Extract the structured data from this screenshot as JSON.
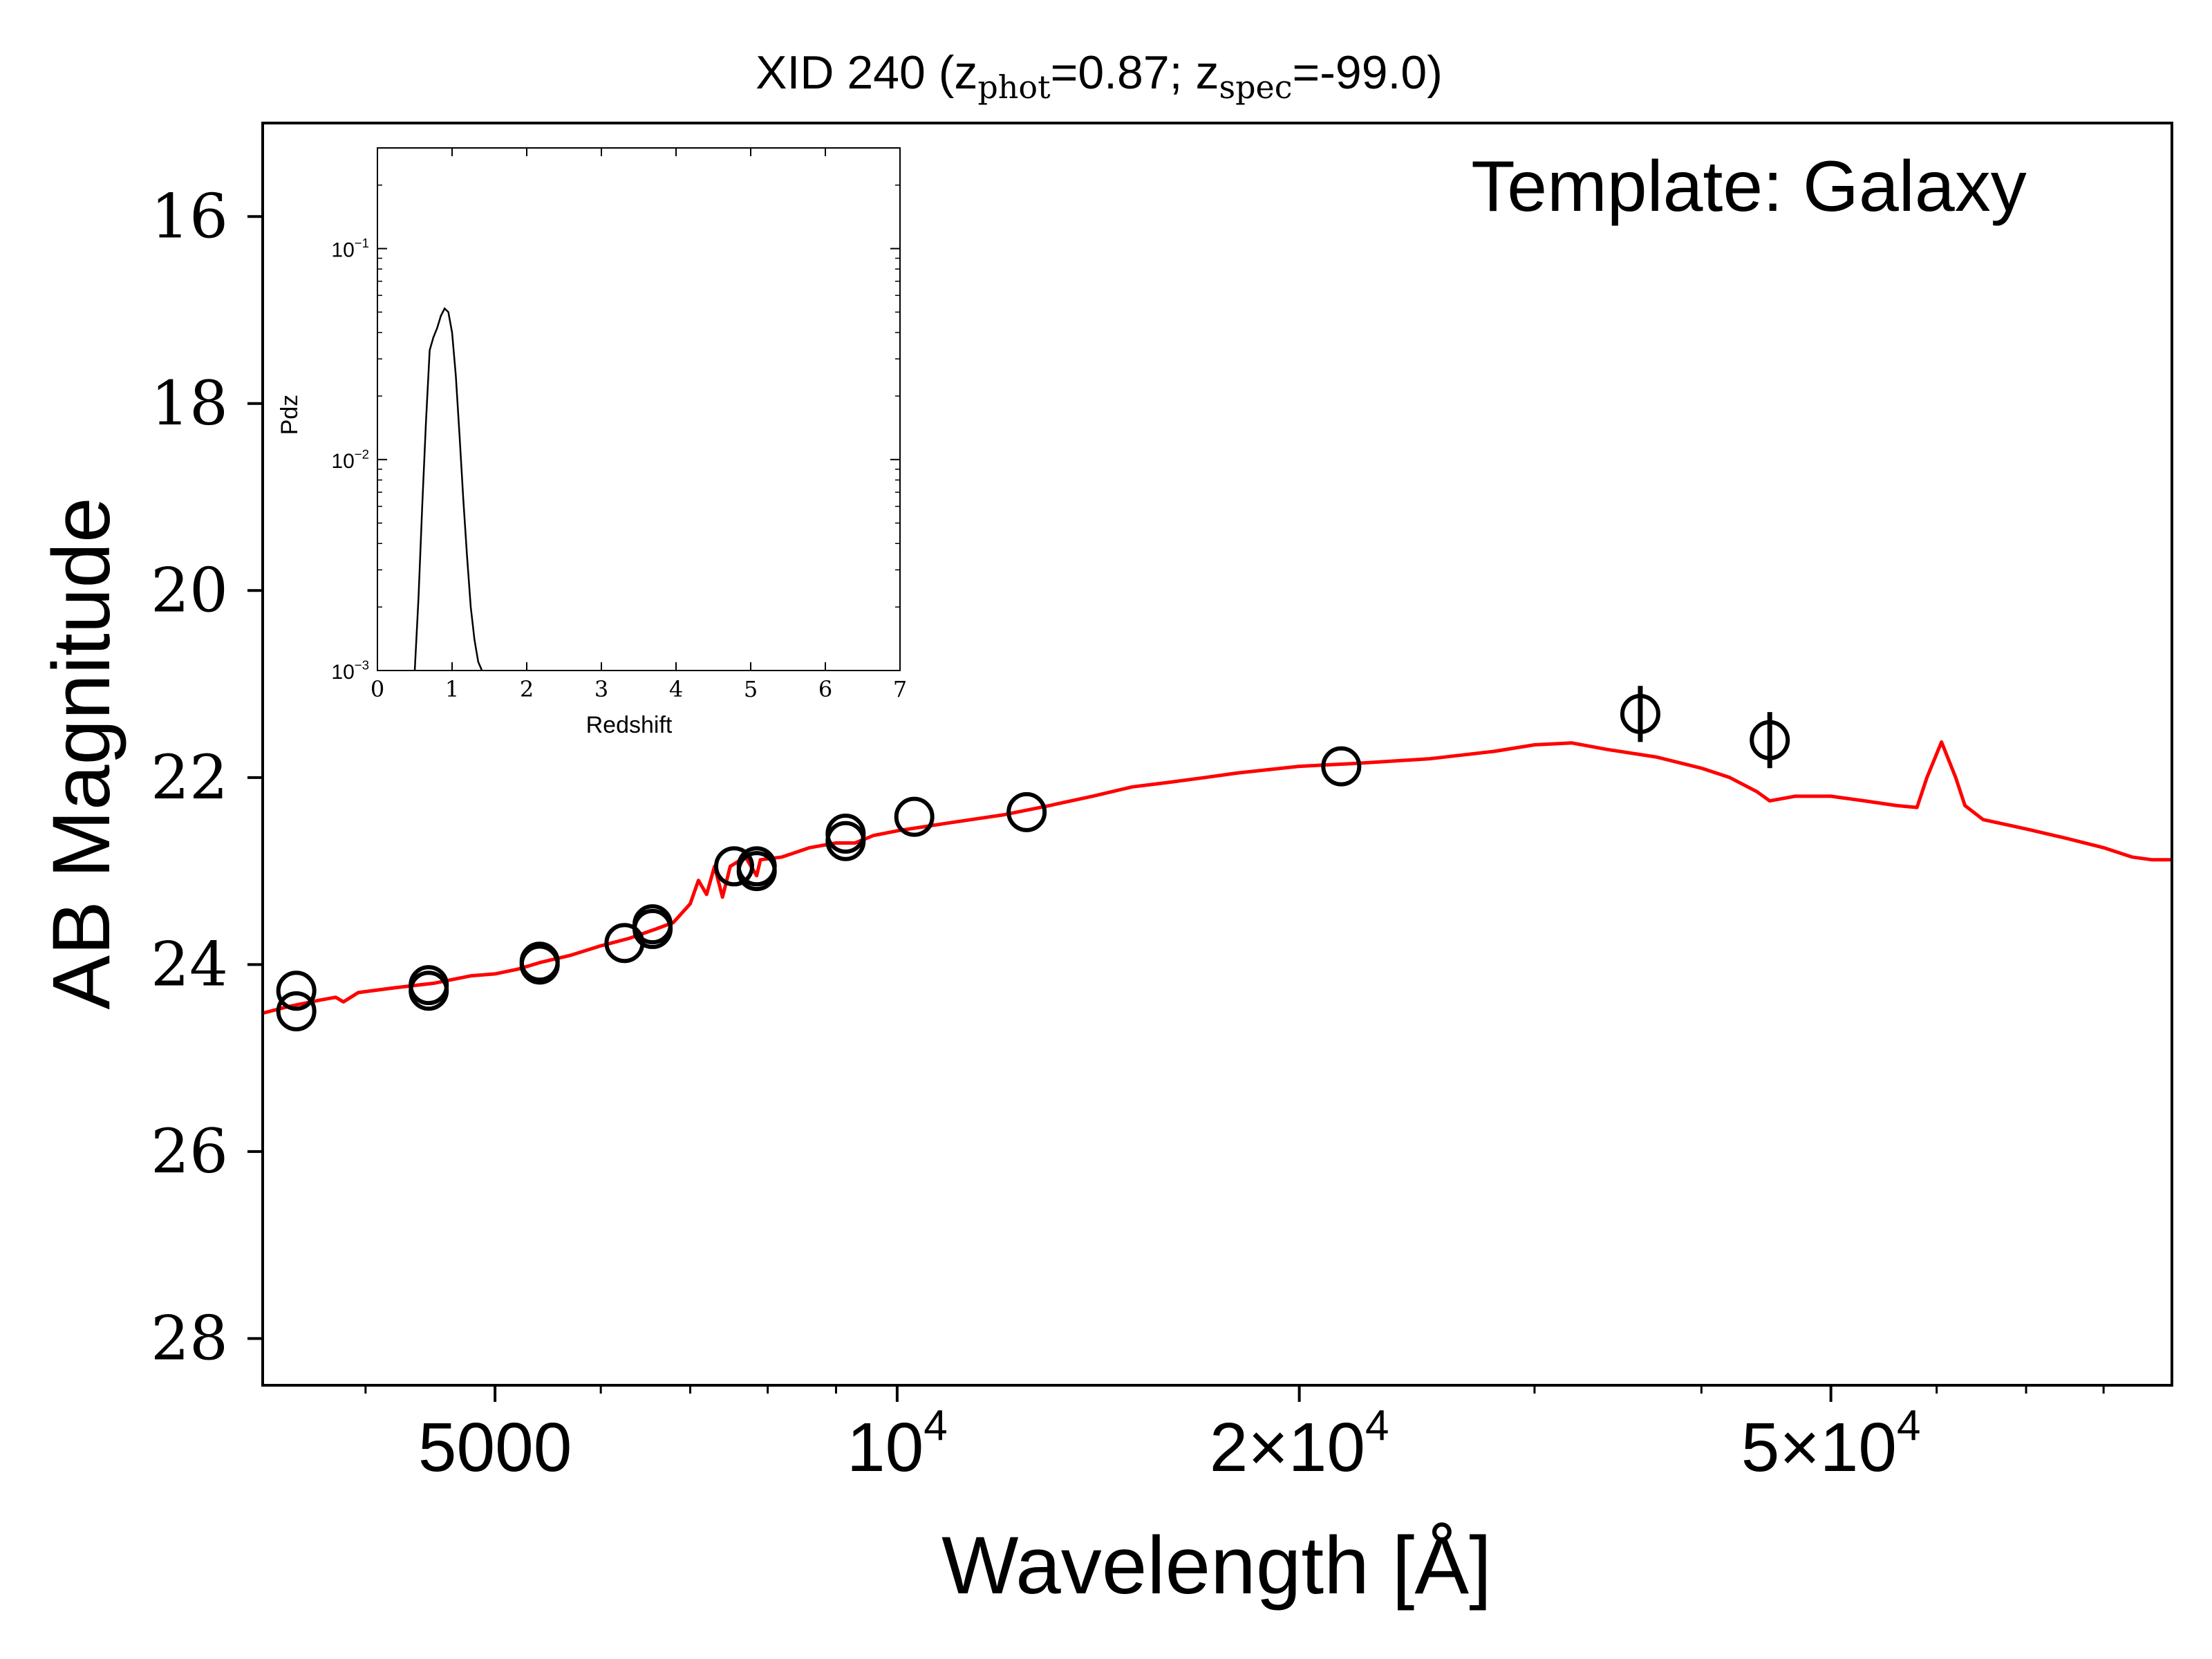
{
  "chart_data": [
    {
      "type": "scatter",
      "title": "XID 240 (z",
      "title_parts": {
        "prefix": "XID 240 (z",
        "sub1": "phot",
        "mid": "=0.87; z",
        "sub2": "spec",
        "suffix": "=-99.0)"
      },
      "xlabel": "Wavelength [Å]",
      "ylabel": "AB Magnitude",
      "annotation": "Template: Galaxy",
      "x_scale": "log",
      "xlim": [
        3350,
        90000
      ],
      "ylim": [
        28.5,
        15.0
      ],
      "y_inverted": true,
      "grid": false,
      "x_major_ticks": [
        {
          "value": 5000,
          "label": "5000"
        },
        {
          "value": 10000,
          "label": "10",
          "exp": "4"
        },
        {
          "value": 20000,
          "label": "2×10",
          "exp": "4"
        },
        {
          "value": 50000,
          "label": "5×10",
          "exp": "4"
        }
      ],
      "y_ticks": [
        "16",
        "18",
        "20",
        "22",
        "24",
        "26",
        "28"
      ],
      "series": [
        {
          "kind": "points",
          "marker": "open-circle",
          "color": "#000000",
          "points": [
            {
              "x": 3550,
              "y": 24.28
            },
            {
              "x": 3550,
              "y": 24.5
            },
            {
              "x": 4460,
              "y": 24.22
            },
            {
              "x": 4460,
              "y": 24.28
            },
            {
              "x": 5400,
              "y": 23.97
            },
            {
              "x": 5400,
              "y": 24.0
            },
            {
              "x": 6250,
              "y": 23.77
            },
            {
              "x": 6560,
              "y": 23.57
            },
            {
              "x": 6560,
              "y": 23.62
            },
            {
              "x": 7550,
              "y": 22.95
            },
            {
              "x": 7850,
              "y": 22.95
            },
            {
              "x": 7850,
              "y": 23.0
            },
            {
              "x": 9150,
              "y": 22.6
            },
            {
              "x": 9150,
              "y": 22.68
            },
            {
              "x": 10300,
              "y": 22.42
            },
            {
              "x": 12500,
              "y": 22.37
            },
            {
              "x": 21500,
              "y": 21.88
            },
            {
              "x": 36000,
              "y": 21.32,
              "err": 0.3
            },
            {
              "x": 45000,
              "y": 21.6,
              "err": 0.3
            }
          ]
        },
        {
          "kind": "line",
          "color": "#ff0000",
          "points": [
            [
              3350,
              24.52
            ],
            [
              3500,
              24.45
            ],
            [
              3700,
              24.38
            ],
            [
              3800,
              24.35
            ],
            [
              3850,
              24.4
            ],
            [
              3950,
              24.3
            ],
            [
              4200,
              24.25
            ],
            [
              4500,
              24.2
            ],
            [
              4800,
              24.12
            ],
            [
              5000,
              24.1
            ],
            [
              5200,
              24.05
            ],
            [
              5400,
              23.98
            ],
            [
              5700,
              23.9
            ],
            [
              6000,
              23.8
            ],
            [
              6300,
              23.72
            ],
            [
              6600,
              23.62
            ],
            [
              6800,
              23.55
            ],
            [
              7000,
              23.35
            ],
            [
              7100,
              23.1
            ],
            [
              7200,
              23.25
            ],
            [
              7300,
              22.95
            ],
            [
              7400,
              23.28
            ],
            [
              7500,
              22.95
            ],
            [
              7600,
              22.9
            ],
            [
              7700,
              22.85
            ],
            [
              7850,
              23.05
            ],
            [
              7900,
              22.88
            ],
            [
              8200,
              22.85
            ],
            [
              8600,
              22.75
            ],
            [
              9000,
              22.7
            ],
            [
              9300,
              22.7
            ],
            [
              9600,
              22.62
            ],
            [
              10000,
              22.57
            ],
            [
              11000,
              22.48
            ],
            [
              12000,
              22.4
            ],
            [
              13000,
              22.3
            ],
            [
              14000,
              22.2
            ],
            [
              15000,
              22.1
            ],
            [
              16000,
              22.05
            ],
            [
              17000,
              22.0
            ],
            [
              18000,
              21.95
            ],
            [
              20000,
              21.88
            ],
            [
              22000,
              21.85
            ],
            [
              25000,
              21.8
            ],
            [
              28000,
              21.72
            ],
            [
              30000,
              21.65
            ],
            [
              32000,
              21.63
            ],
            [
              34000,
              21.7
            ],
            [
              37000,
              21.78
            ],
            [
              40000,
              21.9
            ],
            [
              42000,
              22.0
            ],
            [
              44000,
              22.15
            ],
            [
              45000,
              22.25
            ],
            [
              47000,
              22.2
            ],
            [
              50000,
              22.2
            ],
            [
              53000,
              22.25
            ],
            [
              56000,
              22.3
            ],
            [
              58000,
              22.32
            ],
            [
              59000,
              22.0
            ],
            [
              60500,
              21.62
            ],
            [
              62000,
              22.0
            ],
            [
              63000,
              22.3
            ],
            [
              65000,
              22.45
            ],
            [
              70000,
              22.55
            ],
            [
              75000,
              22.65
            ],
            [
              80000,
              22.75
            ],
            [
              84000,
              22.85
            ],
            [
              87000,
              22.88
            ],
            [
              90000,
              22.88
            ]
          ]
        }
      ]
    },
    {
      "type": "line",
      "xlabel": "Redshift",
      "ylabel": "Pdz",
      "xlim": [
        0,
        7
      ],
      "ylim": [
        0.001,
        0.3
      ],
      "y_scale": "log",
      "x_ticks": [
        "0",
        "1",
        "2",
        "3",
        "4",
        "5",
        "6",
        "7"
      ],
      "y_ticks": [
        {
          "value": 0.1,
          "label": "10",
          "exp": "−1"
        },
        {
          "value": 0.01,
          "label": "10",
          "exp": "−2"
        },
        {
          "value": 0.001,
          "label": "10",
          "exp": "−3"
        }
      ],
      "x": [
        0.5,
        0.55,
        0.6,
        0.65,
        0.7,
        0.75,
        0.8,
        0.85,
        0.9,
        0.95,
        1.0,
        1.05,
        1.1,
        1.15,
        1.2,
        1.25,
        1.3,
        1.35,
        1.4
      ],
      "y": [
        0.001,
        0.0022,
        0.006,
        0.015,
        0.033,
        0.038,
        0.042,
        0.048,
        0.052,
        0.05,
        0.04,
        0.025,
        0.013,
        0.0065,
        0.0035,
        0.002,
        0.0014,
        0.0011,
        0.001
      ],
      "color": "#000000"
    }
  ]
}
